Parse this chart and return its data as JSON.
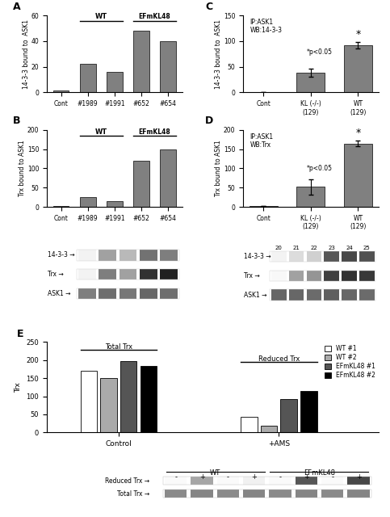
{
  "panel_A": {
    "categories": [
      "Cont",
      "#1989",
      "#1991",
      "#652",
      "#654"
    ],
    "values": [
      1.5,
      22,
      16,
      48,
      40
    ],
    "ylabel": "14-3-3 bound to  ASK1",
    "ylim": [
      0,
      60
    ],
    "yticks": [
      0,
      20,
      40,
      60
    ],
    "bar_color": "#808080",
    "label": "A"
  },
  "panel_B": {
    "categories": [
      "Cont",
      "#1989",
      "#1991",
      "#652",
      "#654"
    ],
    "values": [
      3,
      25,
      15,
      120,
      150
    ],
    "ylabel": "Trx bound to ASK1",
    "ylim": [
      0,
      200
    ],
    "yticks": [
      0,
      50,
      100,
      150,
      200
    ],
    "bar_color": "#808080",
    "label": "B"
  },
  "panel_C": {
    "categories": [
      "Cont",
      "KL (-/-)\n(129)",
      "WT\n(129)"
    ],
    "values": [
      1,
      38,
      92
    ],
    "errors": [
      0,
      8,
      7
    ],
    "ylabel": "14-3-3 bound to  ASK1",
    "ylim": [
      0,
      150
    ],
    "yticks": [
      0,
      50,
      100,
      150
    ],
    "bar_color": "#808080",
    "annotation": "*p<0.05",
    "label": "C",
    "inner_text": "IP:ASK1\nWB:14-3-3"
  },
  "panel_D": {
    "categories": [
      "Cont",
      "KL (-/-)\n(129)",
      "WT\n(129)"
    ],
    "values": [
      2,
      52,
      165
    ],
    "errors": [
      0,
      20,
      8
    ],
    "ylabel": "Trx bound to ASK1",
    "ylim": [
      0,
      200
    ],
    "yticks": [
      0,
      50,
      100,
      150,
      200
    ],
    "bar_color": "#808080",
    "annotation": "*p<0.05",
    "label": "D",
    "inner_text": "IP:ASK1\nWB:Trx"
  },
  "panel_E": {
    "groups": [
      "Control",
      "+AMS"
    ],
    "series": [
      "WT #1",
      "WT #2",
      "EFmKL48 #1",
      "EFmKL48 #2"
    ],
    "colors": [
      "#ffffff",
      "#aaaaaa",
      "#555555",
      "#000000"
    ],
    "values": [
      [
        170,
        150,
        198,
        183
      ],
      [
        42,
        18,
        93,
        115
      ]
    ],
    "ylabel": "Trx",
    "ylim": [
      0,
      250
    ],
    "yticks": [
      0,
      50,
      100,
      150,
      200,
      250
    ],
    "label": "E",
    "total_bracket": "Total Trx",
    "reduced_bracket": "Reduced Trx"
  },
  "blot_AB": {
    "labels": [
      "14-3-3",
      "Trx",
      "ASK1"
    ],
    "intensities_1433": [
      0.05,
      0.4,
      0.3,
      0.6,
      0.55
    ],
    "intensities_trx": [
      0.05,
      0.55,
      0.4,
      0.88,
      0.95
    ],
    "intensities_ask1": [
      0.55,
      0.62,
      0.58,
      0.65,
      0.62
    ]
  },
  "blot_CD": {
    "labels": [
      "14-3-3",
      "Trx",
      "ASK1"
    ],
    "lane_numbers": [
      "20",
      "21",
      "22",
      "23",
      "24",
      "25"
    ],
    "intensities_1433": [
      0.05,
      0.15,
      0.2,
      0.72,
      0.78,
      0.74
    ],
    "intensities_trx": [
      0.03,
      0.4,
      0.45,
      0.82,
      0.88,
      0.85
    ],
    "intensities_ask1": [
      0.65,
      0.65,
      0.63,
      0.68,
      0.65,
      0.63
    ]
  },
  "blot_E": {
    "labels": [
      "Reduced Trx",
      "Total Trx"
    ],
    "wt_label": "WT",
    "ef_label": "EFmKL48",
    "plus_minus": [
      "-",
      "+",
      "-",
      "+",
      "-",
      "+",
      "-",
      "+"
    ],
    "intensities_red": [
      0.02,
      0.38,
      0.02,
      0.06,
      0.02,
      0.72,
      0.02,
      0.78
    ],
    "intensities_tot": [
      0.5,
      0.52,
      0.5,
      0.52,
      0.5,
      0.52,
      0.5,
      0.52
    ]
  }
}
